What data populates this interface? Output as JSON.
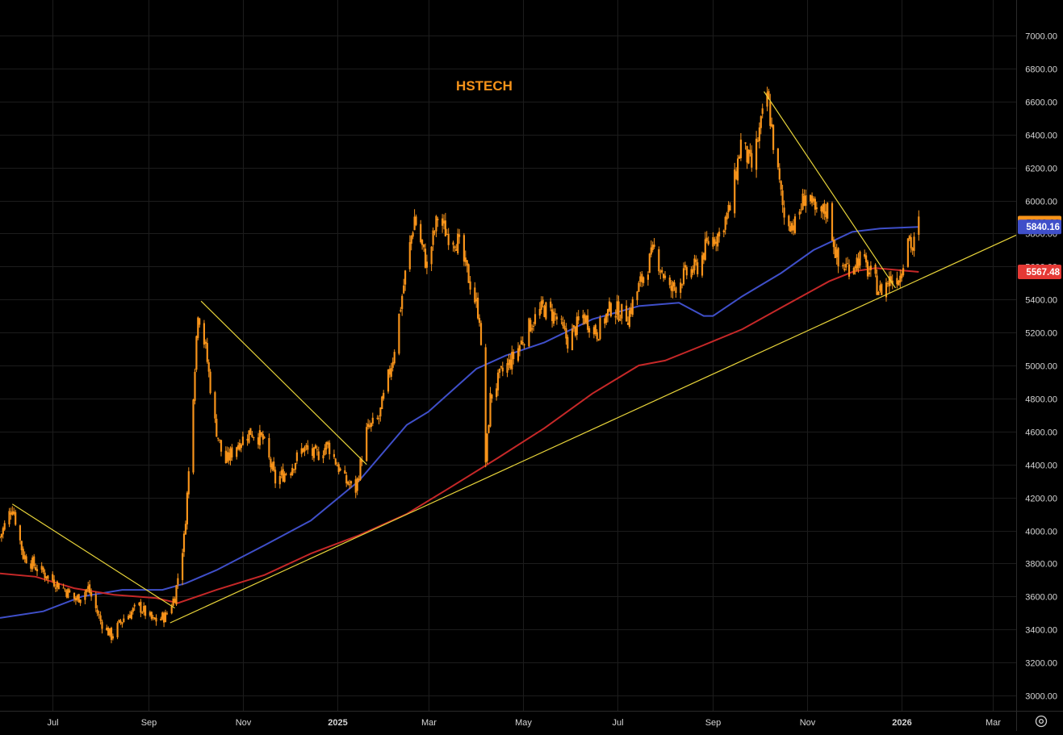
{
  "chart_data": {
    "type": "candlestick",
    "title": "HSTECH",
    "y_ticks": [
      3000,
      3200,
      3400,
      3600,
      3800,
      4000,
      4200,
      4400,
      4600,
      4800,
      5000,
      5200,
      5400,
      5600,
      5800,
      6000,
      6200,
      6400,
      6600,
      6800,
      7000
    ],
    "ylim": [
      2900,
      7200
    ],
    "x_ticks": [
      "Jul",
      "Sep",
      "Nov",
      "2025",
      "Mar",
      "May",
      "Jul",
      "Sep",
      "Nov",
      "2026",
      "Mar"
    ],
    "x_range": [
      "2024-05-28",
      "2026-03-16"
    ],
    "grid": true,
    "last_price": {
      "value": "5863.20",
      "color": "#f7931a"
    },
    "series": [
      {
        "name": "",
        "kind": "candles",
        "color": "#f7931a",
        "close": [
          [
            "2024-05-28",
            3960
          ],
          [
            "2024-06-05",
            4150
          ],
          [
            "2024-06-12",
            3850
          ],
          [
            "2024-06-20",
            3780
          ],
          [
            "2024-06-28",
            3720
          ],
          [
            "2024-07-08",
            3650
          ],
          [
            "2024-07-16",
            3580
          ],
          [
            "2024-07-24",
            3650
          ],
          [
            "2024-08-01",
            3450
          ],
          [
            "2024-08-08",
            3360
          ],
          [
            "2024-08-16",
            3470
          ],
          [
            "2024-08-26",
            3540
          ],
          [
            "2024-09-04",
            3450
          ],
          [
            "2024-09-12",
            3480
          ],
          [
            "2024-09-18",
            3600
          ],
          [
            "2024-09-24",
            3950
          ],
          [
            "2024-09-27",
            4350
          ],
          [
            "2024-10-03",
            5340
          ],
          [
            "2024-10-08",
            5100
          ],
          [
            "2024-10-14",
            4650
          ],
          [
            "2024-10-20",
            4400
          ],
          [
            "2024-10-28",
            4520
          ],
          [
            "2024-11-06",
            4600
          ],
          [
            "2024-11-14",
            4550
          ],
          [
            "2024-11-22",
            4300
          ],
          [
            "2024-12-02",
            4380
          ],
          [
            "2024-12-10",
            4500
          ],
          [
            "2024-12-18",
            4450
          ],
          [
            "2024-12-26",
            4520
          ],
          [
            "2025-01-06",
            4300
          ],
          [
            "2025-01-13",
            4250
          ],
          [
            "2025-01-20",
            4600
          ],
          [
            "2025-01-28",
            4680
          ],
          [
            "2025-02-06",
            5050
          ],
          [
            "2025-02-14",
            5550
          ],
          [
            "2025-02-20",
            5900
          ],
          [
            "2025-02-28",
            5600
          ],
          [
            "2025-03-07",
            5900
          ],
          [
            "2025-03-13",
            5800
          ],
          [
            "2025-03-20",
            5750
          ],
          [
            "2025-03-28",
            5500
          ],
          [
            "2025-04-03",
            5300
          ],
          [
            "2025-04-07",
            4420
          ],
          [
            "2025-04-10",
            4800
          ],
          [
            "2025-04-17",
            4950
          ],
          [
            "2025-04-25",
            5050
          ],
          [
            "2025-05-06",
            5250
          ],
          [
            "2025-05-14",
            5350
          ],
          [
            "2025-05-22",
            5300
          ],
          [
            "2025-05-30",
            5150
          ],
          [
            "2025-06-09",
            5300
          ],
          [
            "2025-06-18",
            5200
          ],
          [
            "2025-06-27",
            5350
          ],
          [
            "2025-07-08",
            5300
          ],
          [
            "2025-07-16",
            5500
          ],
          [
            "2025-07-25",
            5700
          ],
          [
            "2025-08-04",
            5450
          ],
          [
            "2025-08-14",
            5550
          ],
          [
            "2025-08-22",
            5600
          ],
          [
            "2025-08-29",
            5750
          ],
          [
            "2025-09-05",
            5800
          ],
          [
            "2025-09-12",
            5950
          ],
          [
            "2025-09-19",
            6350
          ],
          [
            "2025-09-26",
            6200
          ],
          [
            "2025-10-03",
            6500
          ],
          [
            "2025-10-06",
            6650
          ],
          [
            "2025-10-10",
            6350
          ],
          [
            "2025-10-17",
            5900
          ],
          [
            "2025-10-24",
            5850
          ],
          [
            "2025-10-31",
            6050
          ],
          [
            "2025-11-07",
            5900
          ],
          [
            "2025-11-14",
            5950
          ],
          [
            "2025-11-21",
            5600
          ],
          [
            "2025-11-28",
            5600
          ],
          [
            "2025-12-05",
            5650
          ],
          [
            "2025-12-12",
            5550
          ],
          [
            "2025-12-18",
            5450
          ],
          [
            "2025-12-24",
            5520
          ],
          [
            "2025-12-31",
            5550
          ],
          [
            "2026-01-05",
            5800
          ],
          [
            "2026-01-08",
            5700
          ],
          [
            "2026-01-12",
            5863
          ]
        ]
      },
      {
        "name": "",
        "kind": "line",
        "color": "#3f4fc9",
        "label_value": "5840.16",
        "points": [
          [
            "2024-05-28",
            3470
          ],
          [
            "2024-06-25",
            3510
          ],
          [
            "2024-07-20",
            3600
          ],
          [
            "2024-08-15",
            3640
          ],
          [
            "2024-09-10",
            3640
          ],
          [
            "2024-09-25",
            3680
          ],
          [
            "2024-10-15",
            3760
          ],
          [
            "2024-11-15",
            3910
          ],
          [
            "2024-12-15",
            4060
          ],
          [
            "2025-01-15",
            4300
          ],
          [
            "2025-02-15",
            4640
          ],
          [
            "2025-03-01",
            4720
          ],
          [
            "2025-04-01",
            4980
          ],
          [
            "2025-04-20",
            5060
          ],
          [
            "2025-05-15",
            5140
          ],
          [
            "2025-06-15",
            5280
          ],
          [
            "2025-07-15",
            5360
          ],
          [
            "2025-08-10",
            5380
          ],
          [
            "2025-08-26",
            5300
          ],
          [
            "2025-09-01",
            5300
          ],
          [
            "2025-09-20",
            5420
          ],
          [
            "2025-10-15",
            5560
          ],
          [
            "2025-11-05",
            5700
          ],
          [
            "2025-11-30",
            5810
          ],
          [
            "2025-12-18",
            5830
          ],
          [
            "2026-01-12",
            5840
          ]
        ]
      },
      {
        "name": "",
        "kind": "line",
        "color": "#c62828",
        "label_value": "5567.48",
        "points": [
          [
            "2024-05-28",
            3740
          ],
          [
            "2024-06-20",
            3720
          ],
          [
            "2024-07-15",
            3650
          ],
          [
            "2024-08-10",
            3610
          ],
          [
            "2024-09-06",
            3590
          ],
          [
            "2024-09-20",
            3560
          ],
          [
            "2024-10-15",
            3640
          ],
          [
            "2024-11-15",
            3730
          ],
          [
            "2024-12-15",
            3860
          ],
          [
            "2025-01-15",
            3970
          ],
          [
            "2025-02-15",
            4100
          ],
          [
            "2025-03-15",
            4260
          ],
          [
            "2025-04-15",
            4440
          ],
          [
            "2025-05-15",
            4620
          ],
          [
            "2025-06-15",
            4830
          ],
          [
            "2025-07-15",
            5000
          ],
          [
            "2025-08-01",
            5030
          ],
          [
            "2025-08-25",
            5120
          ],
          [
            "2025-09-20",
            5220
          ],
          [
            "2025-10-15",
            5350
          ],
          [
            "2025-11-15",
            5510
          ],
          [
            "2025-12-01",
            5570
          ],
          [
            "2025-12-15",
            5590
          ],
          [
            "2026-01-12",
            5567
          ]
        ]
      }
    ],
    "trendlines": [
      {
        "color": "#e8d43a",
        "from": [
          "2024-06-05",
          4160
        ],
        "to": [
          "2024-09-18",
          3530
        ]
      },
      {
        "color": "#e8d43a",
        "from": [
          "2024-10-05",
          5390
        ],
        "to": [
          "2025-01-20",
          4400
        ]
      },
      {
        "color": "#e8d43a",
        "from": [
          "2025-10-04",
          6660
        ],
        "to": [
          "2025-12-28",
          5470
        ]
      },
      {
        "color": "#e8d43a",
        "from": [
          "2024-09-15",
          3440
        ],
        "to": [
          "2026-03-16",
          5790
        ]
      }
    ]
  },
  "ui": {
    "settings_icon": "gear-icon"
  }
}
